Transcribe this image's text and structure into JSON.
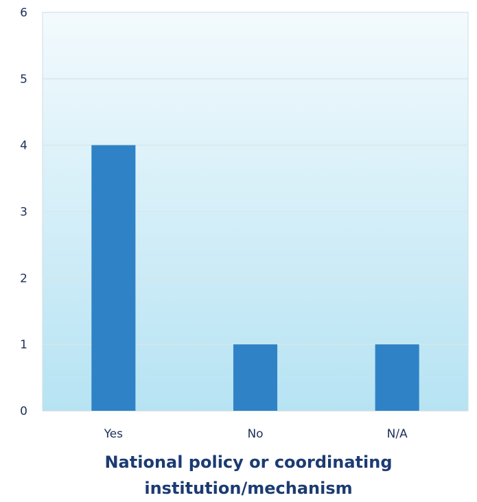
{
  "chart_data": {
    "type": "bar",
    "categories": [
      "Yes",
      "No",
      "N/A"
    ],
    "values": [
      4,
      1,
      1
    ],
    "title": "",
    "xlabel": [
      "National policy or coordinating",
      "institution/mechanism"
    ],
    "ylabel": "",
    "ylim": [
      0,
      6
    ],
    "yticks": [
      "0",
      "1",
      "2",
      "3",
      "4",
      "5",
      "6"
    ],
    "grid": true,
    "legend": "none",
    "colors": {
      "bar": "#2f82c6",
      "plot_bg_top": "#f3fafd",
      "plot_bg_bottom": "#b6e3f3",
      "grid": "#d8e6ec",
      "axis": "#cfdde3",
      "text": "#1c2f5a",
      "xlabel": "#1c3b72"
    }
  }
}
